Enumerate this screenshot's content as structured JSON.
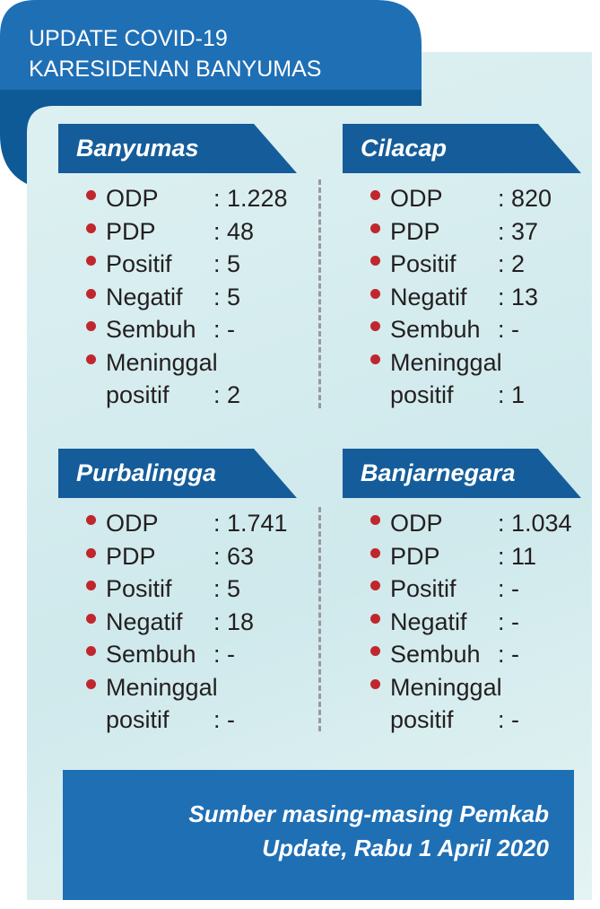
{
  "header": {
    "title_lines": [
      "UPDATE COVID-19",
      "KARESIDENAN BANYUMAS"
    ]
  },
  "regions": [
    {
      "name": "Banyumas",
      "items": [
        {
          "label": "ODP",
          "value": ": 1.228"
        },
        {
          "label": "PDP",
          "value": ": 48"
        },
        {
          "label": "Positif",
          "value": ": 5"
        },
        {
          "label": "Negatif",
          "value": ": 5"
        },
        {
          "label": "Sembuh",
          "value": ": -"
        },
        {
          "label": "Meninggal positif",
          "value": ": 2"
        }
      ]
    },
    {
      "name": "Cilacap",
      "items": [
        {
          "label": "ODP",
          "value": ": 820"
        },
        {
          "label": "PDP",
          "value": ": 37"
        },
        {
          "label": "Positif",
          "value": ": 2"
        },
        {
          "label": "Negatif",
          "value": ": 13"
        },
        {
          "label": "Sembuh",
          "value": ": -"
        },
        {
          "label": "Meninggal positif",
          "value": ": 1"
        }
      ]
    },
    {
      "name": "Purbalingga",
      "items": [
        {
          "label": "ODP",
          "value": ": 1.741"
        },
        {
          "label": "PDP",
          "value": ": 63"
        },
        {
          "label": "Positif",
          "value": ": 5"
        },
        {
          "label": "Negatif",
          "value": ": 18"
        },
        {
          "label": "Sembuh",
          "value": ": -"
        },
        {
          "label": "Meninggal positif",
          "value": ": -"
        }
      ]
    },
    {
      "name": "Banjarnegara",
      "items": [
        {
          "label": "ODP",
          "value": ": 1.034"
        },
        {
          "label": "PDP",
          "value": ": 11"
        },
        {
          "label": "Positif",
          "value": ": -"
        },
        {
          "label": "Negatif",
          "value": ": -"
        },
        {
          "label": "Sembuh",
          "value": ": -"
        },
        {
          "label": "Meninggal positif",
          "value": ": -"
        }
      ]
    }
  ],
  "footer": {
    "lines": [
      "Sumber masing-masing Pemkab",
      "Update, Rabu 1 April 2020"
    ]
  }
}
